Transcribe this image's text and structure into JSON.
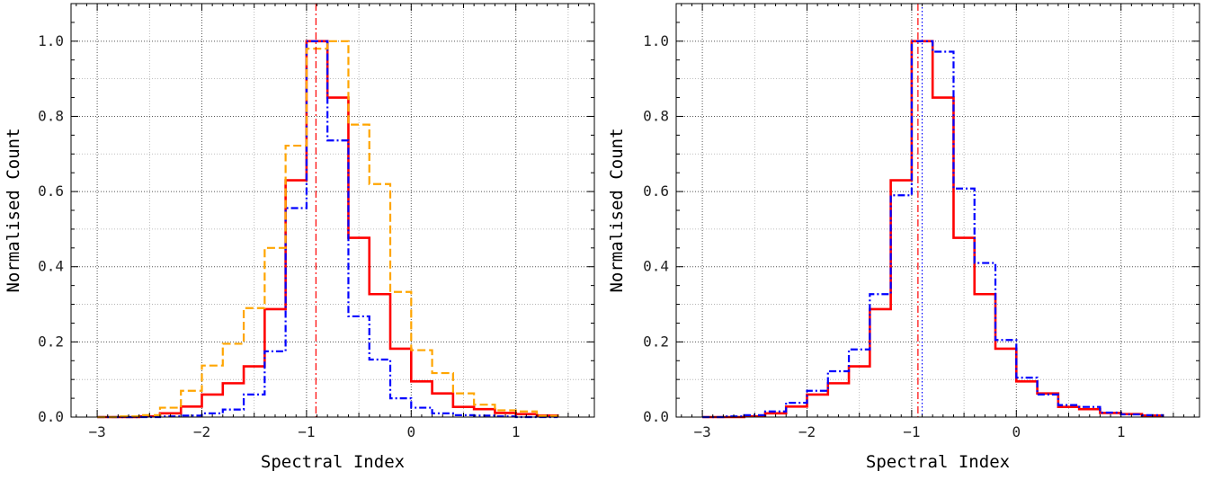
{
  "chart_data": [
    {
      "type": "line",
      "xlabel": "Spectral Index",
      "ylabel": "Normalised Count",
      "xlim": [
        -3.25,
        1.75
      ],
      "ylim": [
        0,
        1.1
      ],
      "grid": true,
      "x_ticks": [
        -3,
        -2,
        -1,
        0,
        1
      ],
      "x_tick_labels": [
        "−3",
        "−2",
        "−1",
        "0",
        "1"
      ],
      "y_ticks": [
        0.0,
        0.2,
        0.4,
        0.6,
        0.8,
        1.0
      ],
      "y_tick_labels": [
        "0.0",
        "0.2",
        "0.4",
        "0.6",
        "0.8",
        "1.0"
      ],
      "bin_edges": [
        -3.0,
        -2.8,
        -2.6,
        -2.4,
        -2.2,
        -2.0,
        -1.8,
        -1.6,
        -1.4,
        -1.2,
        -1.0,
        -0.8,
        -0.6,
        -0.4,
        -0.2,
        0.0,
        0.2,
        0.4,
        0.6,
        0.8,
        1.0,
        1.2,
        1.4
      ],
      "series": [
        {
          "color": "#ff0000",
          "style": "solid",
          "values": [
            0.0,
            0.0,
            0.002,
            0.01,
            0.028,
            0.06,
            0.09,
            0.135,
            0.287,
            0.63,
            1.0,
            0.85,
            0.477,
            0.327,
            0.182,
            0.095,
            0.063,
            0.027,
            0.021,
            0.011,
            0.008,
            0.004
          ]
        },
        {
          "color": "#0000ff",
          "style": "dashdot",
          "values": [
            0.0,
            0.0,
            0.0,
            0.002,
            0.004,
            0.01,
            0.02,
            0.06,
            0.175,
            0.556,
            1.0,
            0.736,
            0.268,
            0.153,
            0.05,
            0.025,
            0.01,
            0.005,
            0.004,
            0.002,
            0.0,
            0.0
          ]
        },
        {
          "color": "#ffa500",
          "style": "dashed",
          "values": [
            0.0,
            0.002,
            0.005,
            0.025,
            0.07,
            0.137,
            0.195,
            0.29,
            0.45,
            0.722,
            0.98,
            1.0,
            0.778,
            0.62,
            0.333,
            0.178,
            0.117,
            0.063,
            0.033,
            0.018,
            0.015,
            0.003
          ]
        }
      ],
      "vlines": [
        {
          "x": -0.91,
          "color": "#ff0000",
          "style": "dashdot"
        }
      ]
    },
    {
      "type": "line",
      "xlabel": "Spectral Index",
      "ylabel": "Normalised Count",
      "xlim": [
        -3.25,
        1.75
      ],
      "ylim": [
        0,
        1.1
      ],
      "grid": true,
      "x_ticks": [
        -3,
        -2,
        -1,
        0,
        1
      ],
      "x_tick_labels": [
        "−3",
        "−2",
        "−1",
        "0",
        "1"
      ],
      "y_ticks": [
        0.0,
        0.2,
        0.4,
        0.6,
        0.8,
        1.0
      ],
      "y_tick_labels": [
        "0.0",
        "0.2",
        "0.4",
        "0.6",
        "0.8",
        "1.0"
      ],
      "bin_edges": [
        -3.0,
        -2.8,
        -2.6,
        -2.4,
        -2.2,
        -2.0,
        -1.8,
        -1.6,
        -1.4,
        -1.2,
        -1.0,
        -0.8,
        -0.6,
        -0.4,
        -0.2,
        0.0,
        0.2,
        0.4,
        0.6,
        0.8,
        1.0,
        1.2,
        1.4
      ],
      "series": [
        {
          "color": "#ff0000",
          "style": "solid",
          "values": [
            0.0,
            0.0,
            0.002,
            0.01,
            0.028,
            0.06,
            0.09,
            0.135,
            0.287,
            0.63,
            1.0,
            0.85,
            0.477,
            0.327,
            0.182,
            0.095,
            0.063,
            0.027,
            0.021,
            0.011,
            0.008,
            0.004
          ]
        },
        {
          "color": "#0000ff",
          "style": "dashdot",
          "values": [
            0.0,
            0.002,
            0.005,
            0.015,
            0.038,
            0.07,
            0.122,
            0.18,
            0.327,
            0.59,
            1.0,
            0.972,
            0.608,
            0.41,
            0.205,
            0.105,
            0.06,
            0.032,
            0.027,
            0.012,
            0.007,
            0.005
          ]
        }
      ],
      "vlines": [
        {
          "x": -0.94,
          "color": "#ff0000",
          "style": "dashdot"
        },
        {
          "x": -0.9,
          "color": "#0000ff",
          "style": "dotted"
        }
      ]
    }
  ]
}
